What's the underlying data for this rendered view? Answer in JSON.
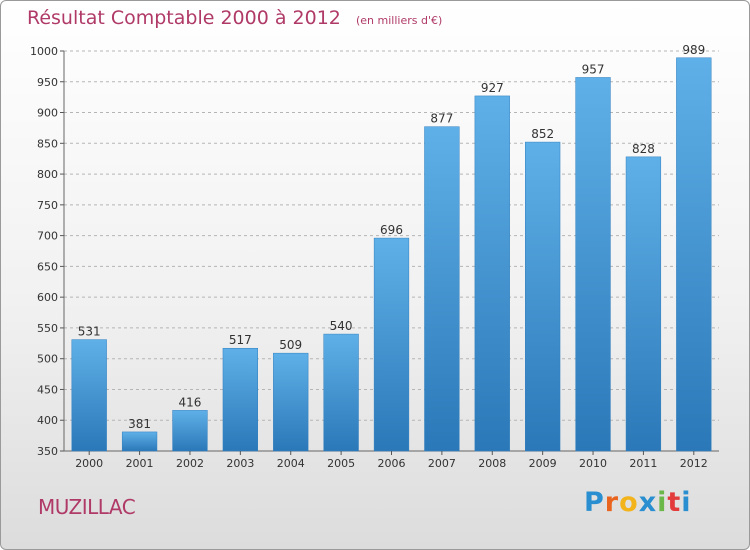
{
  "title": "Résultat Comptable 2000 à 2012",
  "subtitle": "(en milliers d'€)",
  "city": "MUZILLAC",
  "brand": {
    "letters": [
      "P",
      "r",
      "o",
      "x",
      "i",
      "t",
      "i"
    ],
    "colors": [
      "#2a8fd0",
      "#e9651f",
      "#f2b31b",
      "#2a8fd0",
      "#6ab84a",
      "#e33b3b",
      "#2a8fd0"
    ]
  },
  "colors": {
    "bar": "#3a94d6",
    "bar_light": "#5fb0e8",
    "title": "#b03a67",
    "grid": "#b5b5b5"
  },
  "chart_data": {
    "type": "bar",
    "categories": [
      "2000",
      "2001",
      "2002",
      "2003",
      "2004",
      "2005",
      "2006",
      "2007",
      "2008",
      "2009",
      "2010",
      "2011",
      "2012"
    ],
    "values": [
      531,
      381,
      416,
      517,
      509,
      540,
      696,
      877,
      927,
      852,
      957,
      828,
      989
    ],
    "ylim": [
      350,
      1000
    ],
    "yticks": [
      350,
      400,
      450,
      500,
      550,
      600,
      650,
      700,
      750,
      800,
      850,
      900,
      950,
      1000
    ],
    "grid": true
  }
}
